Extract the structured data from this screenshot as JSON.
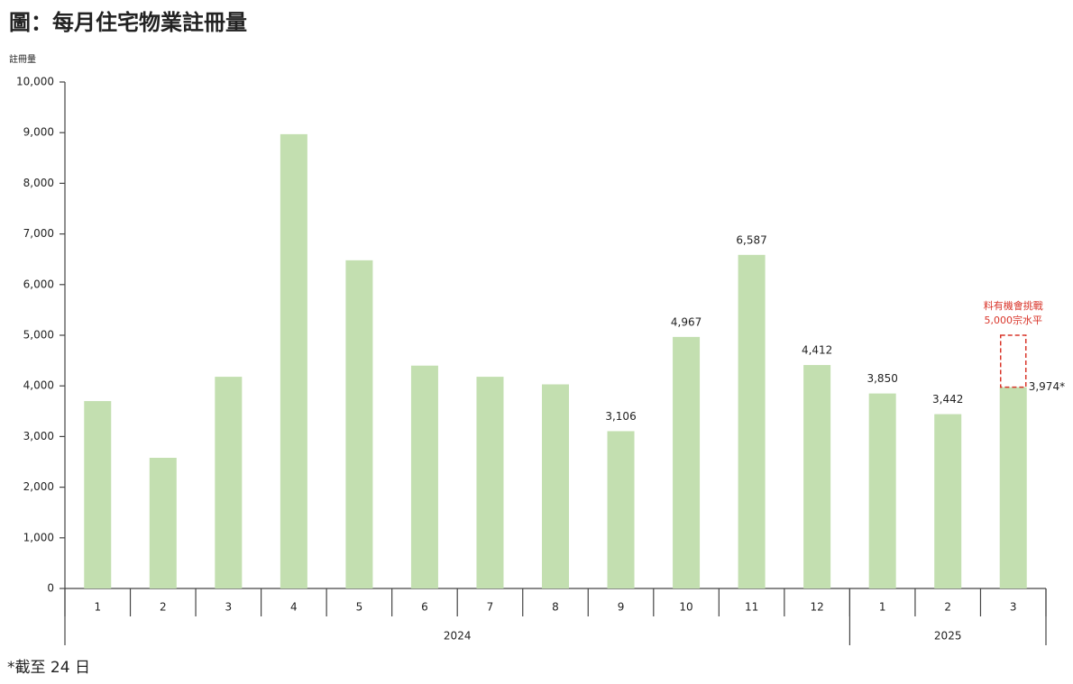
{
  "chart_data": {
    "type": "bar",
    "title": "圖：每月住宅物業註冊量",
    "y_label": "註冊量",
    "footnote": "*截至 24 日",
    "categories": [
      "1",
      "2",
      "3",
      "4",
      "5",
      "6",
      "7",
      "8",
      "9",
      "10",
      "11",
      "12",
      "1",
      "2",
      "3"
    ],
    "groups": [
      {
        "label": "2024",
        "size": 12
      },
      {
        "label": "2025",
        "size": 3
      }
    ],
    "values": [
      3700,
      2580,
      4180,
      8970,
      6480,
      4400,
      4180,
      4030,
      3106,
      4967,
      6587,
      4412,
      3850,
      3442,
      3974
    ],
    "value_labels": [
      null,
      null,
      null,
      null,
      null,
      null,
      null,
      null,
      "3,106",
      "4,967",
      "6,587",
      "4,412",
      "3,850",
      "3,442",
      "3,974*"
    ],
    "color": "#c3dfb0",
    "ylim": [
      0,
      10000
    ],
    "yticks": [
      0,
      {
        "value": 1000,
        "label": "1,000"
      },
      {
        "value": 2000,
        "label": "2,000"
      },
      {
        "value": 3000,
        "label": "3,000"
      },
      {
        "value": 4000,
        "label": "4,000"
      },
      {
        "value": 5000,
        "label": "5,000"
      },
      {
        "value": 6000,
        "label": "6,000"
      },
      {
        "value": 7000,
        "label": "7,000"
      },
      {
        "value": 8000,
        "label": "8,000"
      },
      {
        "value": 9000,
        "label": "9,000"
      },
      {
        "value": 10000,
        "label": "10,000"
      }
    ],
    "annotation": {
      "text": [
        "料有機會挑戰",
        "5,000宗水平"
      ],
      "value": 5000,
      "color": "#d9362b"
    }
  }
}
